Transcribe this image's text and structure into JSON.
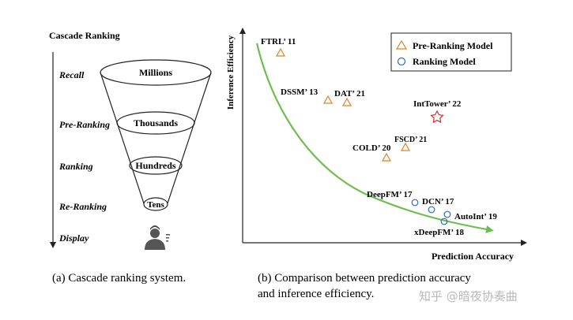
{
  "left_panel": {
    "title": "Cascade Ranking",
    "stages": [
      "Recall",
      "Pre-Ranking",
      "Ranking",
      "Re-Ranking",
      "Display"
    ],
    "funnel_labels": [
      "Millions",
      "Thousands",
      "Hundreds",
      "Tens"
    ],
    "caption": "(a) Cascade ranking system.",
    "icon": "user-icon"
  },
  "right_panel": {
    "ylabel": "Inference Efficiency",
    "xlabel": "Prediction Accuracy",
    "legend": {
      "pre_ranking": "Pre-Ranking Model",
      "ranking": "Ranking Model"
    },
    "caption_line1": "(b) Comparison between prediction accuracy",
    "caption_line2": "and inference efficiency.",
    "points": [
      {
        "label": "FTRL’ 11",
        "group": "pre_ranking"
      },
      {
        "label": "DSSM’ 13",
        "group": "pre_ranking"
      },
      {
        "label": "DAT’ 21",
        "group": "pre_ranking"
      },
      {
        "label": "FSCD’ 21",
        "group": "pre_ranking"
      },
      {
        "label": "COLD’ 20",
        "group": "pre_ranking"
      },
      {
        "label": "IntTower’ 22",
        "group": "highlight"
      },
      {
        "label": "DeepFM’ 17",
        "group": "ranking"
      },
      {
        "label": "DCN’ 17",
        "group": "ranking"
      },
      {
        "label": "AutoInt’ 19",
        "group": "ranking"
      },
      {
        "label": "xDeepFM’ 18",
        "group": "ranking"
      }
    ]
  },
  "watermark": "知乎 @暗夜协奏曲",
  "colors": {
    "triangle": "#d9822b",
    "circle": "#2f6db5",
    "star": "#d62b2b",
    "curve": "#6cbf4e",
    "axis": "#222222"
  }
}
